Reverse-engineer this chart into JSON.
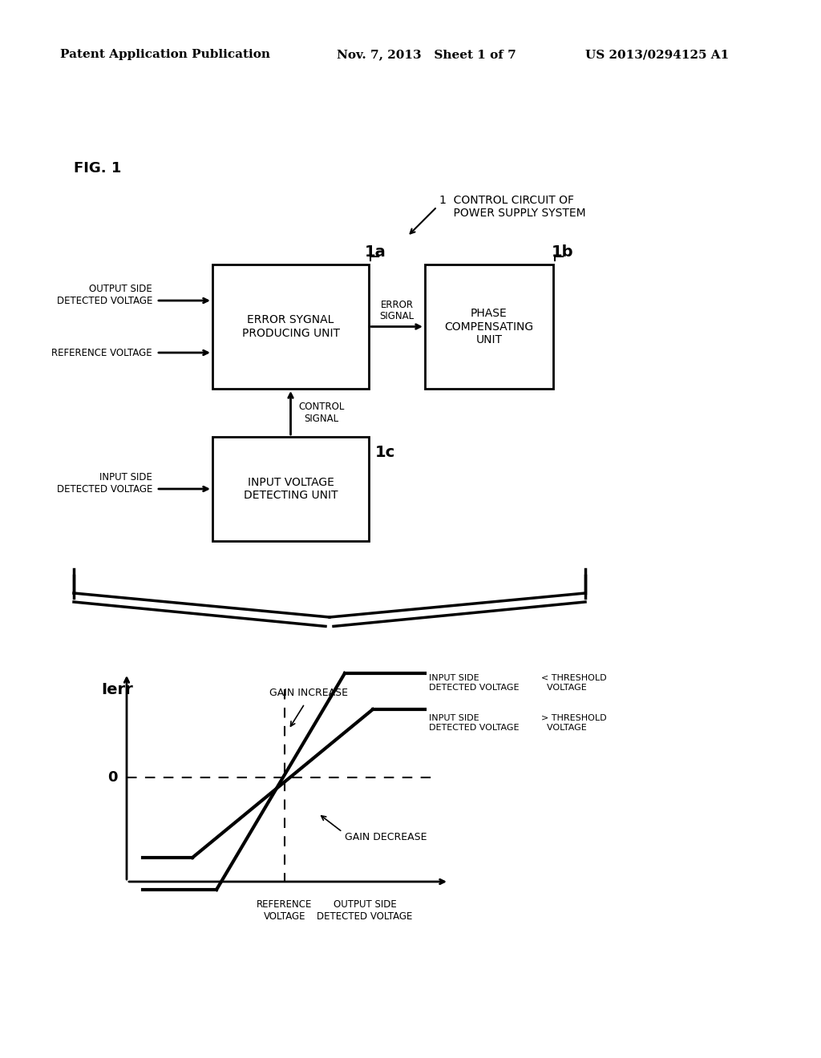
{
  "bg_color": "#ffffff",
  "header_left": "Patent Application Publication",
  "header_mid": "Nov. 7, 2013   Sheet 1 of 7",
  "header_right": "US 2013/0294125 A1",
  "fig_label": "FIG. 1",
  "label_1": "1  CONTROL CIRCUIT OF\n    POWER SUPPLY SYSTEM",
  "block_1a_label": "1a",
  "block_1a_text": "ERROR SYGNAL\nPRODUCING UNIT",
  "block_1b_label": "1b",
  "block_1b_text": "PHASE\nCOMPENSATING\nUNIT",
  "block_1c_label": "1c",
  "block_1c_text": "INPUT VOLTAGE\nDETECTING UNIT",
  "arrow_output_side": "OUTPUT SIDE\nDETECTED VOLTAGE",
  "arrow_reference": "REFERENCE VOLTAGE",
  "arrow_error_signal": "ERROR\nSIGNAL",
  "arrow_control_signal": "CONTROL\nSIGNAL",
  "arrow_input_side": "INPUT SIDE\nDETECTED VOLTAGE",
  "graph_ylabel": "Ierr",
  "graph_xlabel1": "REFERENCE\nVOLTAGE",
  "graph_xlabel2": "OUTPUT SIDE\nDETECTED VOLTAGE",
  "graph_zero": "0",
  "gain_increase_label": "GAIN INCREASE",
  "gain_decrease_label": "GAIN DECREASE",
  "curve1_label1": "INPUT SIDE",
  "curve1_label2": "DETECTED VOLTAGE",
  "curve1_label3": "< THRESHOLD\n  VOLTAGE",
  "curve2_label1": "INPUT SIDE",
  "curve2_label2": "DETECTED VOLTAGE",
  "curve2_label3": "> THRESHOLD\n  VOLTAGE"
}
